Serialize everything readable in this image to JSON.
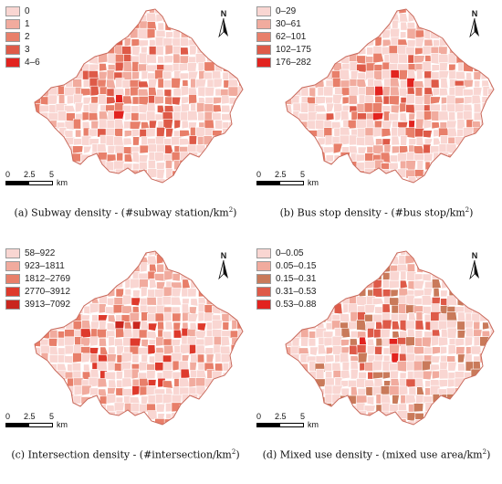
{
  "panels": [
    {
      "legend": [
        {
          "label": "0",
          "color": "#f9d6d2"
        },
        {
          "label": "1",
          "color": "#f1ab9e"
        },
        {
          "label": "2",
          "color": "#e87f6a"
        },
        {
          "label": "3",
          "color": "#de5a48"
        },
        {
          "label": "4–6",
          "color": "#e2231f"
        }
      ],
      "caption_main": "(a) Subway density - (#subway station/km",
      "caption_sup": "2",
      "caption_end": ")"
    },
    {
      "legend": [
        {
          "label": "0–29",
          "color": "#f9d6d2"
        },
        {
          "label": "30–61",
          "color": "#f1ab9e"
        },
        {
          "label": "62–101",
          "color": "#e87f6a"
        },
        {
          "label": "102–175",
          "color": "#de5a48"
        },
        {
          "label": "176–282",
          "color": "#e2231f"
        }
      ],
      "caption_main": "(b) Bus stop density  - (#bus stop/km",
      "caption_sup": "2",
      "caption_end": ")"
    },
    {
      "legend": [
        {
          "label": "58–922",
          "color": "#f9d6d2"
        },
        {
          "label": "923–1811",
          "color": "#f1ab9e"
        },
        {
          "label": "1812–2769",
          "color": "#e87f6a"
        },
        {
          "label": "2770–3912",
          "color": "#de3a2c"
        },
        {
          "label": "3913–7092",
          "color": "#c9261e"
        }
      ],
      "caption_main": "(c) Intersection density - (#intersection/km",
      "caption_sup": "2",
      "caption_end": ")"
    },
    {
      "legend": [
        {
          "label": "0–0.05",
          "color": "#f9d6d2"
        },
        {
          "label": "0.05–0.15",
          "color": "#f1ab9e"
        },
        {
          "label": "0.15–0.31",
          "color": "#c97a5a"
        },
        {
          "label": "0.31–0.53",
          "color": "#de5a48"
        },
        {
          "label": "0.53–0.88",
          "color": "#e2231f"
        }
      ],
      "caption_main": "(d) Mixed use density - (mixed use area/km",
      "caption_sup": "2",
      "caption_end": ")"
    }
  ],
  "north_label": "N",
  "scale_ticks": [
    "0",
    "2.5",
    "5"
  ],
  "scale_unit": "km",
  "map_boundary_color": "#c96a5c",
  "map_internal_line_color": "#ffffff",
  "icons": [
    "north-arrow-icon",
    "scale-bar"
  ]
}
